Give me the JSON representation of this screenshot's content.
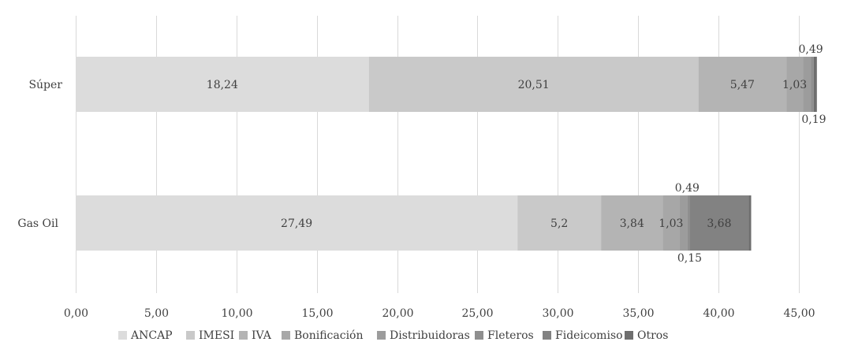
{
  "chart_data": {
    "type": "bar",
    "orientation": "horizontal",
    "stacked": true,
    "categories": [
      "Súper",
      "Gas Oil"
    ],
    "series": [
      {
        "name": "ANCAP",
        "values": [
          18.24,
          27.49
        ],
        "labels": [
          "18,24",
          "27,49"
        ],
        "color": "#dcdcdc"
      },
      {
        "name": "IMESI",
        "values": [
          20.51,
          5.2
        ],
        "labels": [
          "20,51",
          "5,2"
        ],
        "color": "#c9c9c9"
      },
      {
        "name": "IVA",
        "values": [
          5.47,
          3.84
        ],
        "labels": [
          "5,47",
          "3,84"
        ],
        "color": "#b4b4b4"
      },
      {
        "name": "Bonificación",
        "values": [
          1.03,
          1.03
        ],
        "labels": [
          "1,03",
          "1,03"
        ],
        "color": "#a7a7a7"
      },
      {
        "name": "Distribuidoras",
        "values": [
          0.49,
          0.49
        ],
        "labels": [
          "0,49",
          "0,49"
        ],
        "color": "#9c9c9c"
      },
      {
        "name": "Fleteros",
        "values": [
          0.19,
          0.15
        ],
        "labels": [
          "0,19",
          "0,15"
        ],
        "color": "#8f8f8f"
      },
      {
        "name": "Fideicomiso",
        "values": [
          0,
          3.68
        ],
        "labels": [
          "",
          "3,68"
        ],
        "color": "#828282"
      },
      {
        "name": "Otros",
        "values": [
          0.19,
          0.15
        ],
        "labels": [
          "",
          ""
        ],
        "color": "#6e6e6e"
      }
    ],
    "xlim": [
      0,
      45
    ],
    "xticks": [
      {
        "value": 0,
        "label": "0,00"
      },
      {
        "value": 5,
        "label": "5,00"
      },
      {
        "value": 10,
        "label": "10,00"
      },
      {
        "value": 15,
        "label": "15,00"
      },
      {
        "value": 20,
        "label": "20,00"
      },
      {
        "value": 25,
        "label": "25,00"
      },
      {
        "value": 30,
        "label": "30,00"
      },
      {
        "value": 35,
        "label": "35,00"
      },
      {
        "value": 40,
        "label": "40,00"
      },
      {
        "value": 45,
        "label": "45,00"
      }
    ],
    "grid": true,
    "legend_position": "bottom",
    "title": "",
    "xlabel": "",
    "ylabel": ""
  }
}
